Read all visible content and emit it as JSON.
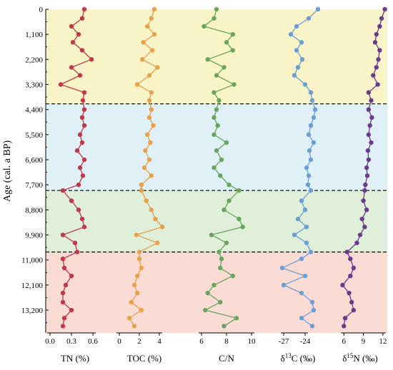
{
  "chart_data": {
    "type": "line",
    "ylabel": "Age (cal. a BP)",
    "y_axis": {
      "ticks": [
        0,
        1100,
        2200,
        3300,
        4400,
        5500,
        6600,
        7700,
        8800,
        9900,
        11000,
        12100,
        13200
      ],
      "tick_labels": [
        "0",
        "1,100",
        "2,200",
        "3,300",
        "4,400",
        "5,500",
        "6,600",
        "7,700",
        "8,800",
        "9,900",
        "11,000",
        "12,100",
        "13,200"
      ],
      "range": [
        0,
        14200
      ],
      "inverted": true
    },
    "zones": [
      {
        "from": 0,
        "to": 4150,
        "color": "#f8f4c7"
      },
      {
        "from": 4150,
        "to": 7950,
        "color": "#dff0f6"
      },
      {
        "from": 7950,
        "to": 10650,
        "color": "#dfefd9"
      },
      {
        "from": 10650,
        "to": 14200,
        "color": "#fadcd4"
      }
    ],
    "boundaries": [
      4150,
      7950,
      10650
    ],
    "ages": [
      0,
      400,
      750,
      1100,
      1450,
      1800,
      2200,
      2550,
      2900,
      3300,
      3650,
      4000,
      4400,
      4750,
      5100,
      5500,
      5850,
      6200,
      6600,
      6950,
      7300,
      7700,
      7950,
      8400,
      8800,
      9200,
      9550,
      9900,
      10250,
      10650,
      10950,
      11350,
      11700,
      12100,
      12450,
      12850,
      13200,
      13550,
      13900
    ],
    "panels": [
      {
        "id": "tn",
        "label": "TN (%)",
        "color": "#c0394b",
        "range": [
          0,
          0.7
        ],
        "ticks": [
          0,
          0.3,
          0.6
        ],
        "tick_labels": [
          "0.0",
          "0.3",
          "0.6"
        ],
        "values": [
          0.48,
          0.45,
          0.3,
          0.4,
          0.32,
          0.45,
          0.58,
          0.3,
          0.42,
          0.15,
          0.48,
          0.46,
          0.48,
          0.45,
          0.48,
          0.42,
          0.45,
          0.38,
          0.48,
          0.42,
          0.46,
          0.4,
          0.18,
          0.3,
          0.4,
          0.45,
          0.48,
          0.18,
          0.35,
          0.38,
          0.18,
          0.2,
          0.3,
          0.22,
          0.18,
          0.18,
          0.3,
          0.2,
          0.18
        ]
      },
      {
        "id": "toc",
        "label": "TOC (%)",
        "color": "#e8a04b",
        "range": [
          0,
          5
        ],
        "ticks": [
          0,
          2,
          4
        ],
        "tick_labels": [
          "0",
          "2",
          "4"
        ],
        "values": [
          3.5,
          3.2,
          2.8,
          3.5,
          2.4,
          3.3,
          2.3,
          3.8,
          3.0,
          1.8,
          3.2,
          3.0,
          3.2,
          3.0,
          3.4,
          2.8,
          3.1,
          2.6,
          3.0,
          2.5,
          3.2,
          2.2,
          2.2,
          2.7,
          3.2,
          3.6,
          4.3,
          1.7,
          3.8,
          2.0,
          2.0,
          2.2,
          1.8,
          1.5,
          1.8,
          1.2,
          2.2,
          1.0,
          1.5
        ]
      },
      {
        "id": "cn",
        "label": "C/N",
        "color": "#6aa55f",
        "range": [
          6,
          10
        ],
        "ticks": [
          6,
          8,
          10
        ],
        "tick_labels": [
          "6",
          "8",
          "10"
        ],
        "values": [
          7.2,
          7.0,
          6.2,
          8.5,
          8.0,
          8.5,
          6.5,
          7.8,
          7.2,
          8.6,
          7.0,
          7.4,
          7.2,
          7.0,
          7.3,
          7.0,
          8.0,
          7.2,
          7.6,
          7.0,
          7.5,
          8.2,
          9.0,
          8.2,
          7.8,
          9.0,
          9.3,
          6.8,
          8.0,
          7.4,
          7.6,
          7.5,
          8.5,
          7.0,
          6.5,
          7.5,
          6.3,
          8.8,
          7.8
        ]
      },
      {
        "id": "d13c",
        "label": "δ13C (‰)",
        "color": "#6b9fd4",
        "range": [
          -28.5,
          -21.5
        ],
        "ticks": [
          -27,
          -24
        ],
        "tick_labels": [
          "-27",
          "-24"
        ],
        "values": [
          -22.2,
          -23.5,
          -25.2,
          -26.0,
          -24.5,
          -25.2,
          -24.4,
          -25.0,
          -25.5,
          -24.0,
          -23.2,
          -23.0,
          -22.6,
          -22.8,
          -23.2,
          -23.5,
          -22.8,
          -23.4,
          -23.2,
          -23.8,
          -23.5,
          -23.6,
          -23.2,
          -24.5,
          -24.0,
          -25.0,
          -23.8,
          -25.5,
          -23.8,
          -23.2,
          -24.5,
          -27.2,
          -24.0,
          -27.0,
          -24.5,
          -23.0,
          -22.8,
          -24.5,
          -23.0
        ]
      },
      {
        "id": "d15n",
        "label": "δ15N (‰)",
        "color": "#6a3b8c",
        "range": [
          4,
          13
        ],
        "ticks": [
          6,
          9,
          12
        ],
        "tick_labels": [
          "6",
          "9",
          "12"
        ],
        "values": [
          12.3,
          11.8,
          11.5,
          11.0,
          10.8,
          11.5,
          11.3,
          11.0,
          10.5,
          11.2,
          9.8,
          10.2,
          9.8,
          10.3,
          10.0,
          9.8,
          10.2,
          9.7,
          9.8,
          9.5,
          9.6,
          9.3,
          9.2,
          9.0,
          9.5,
          8.8,
          9.2,
          8.5,
          8.0,
          6.5,
          7.0,
          7.5,
          7.0,
          5.8,
          6.8,
          7.2,
          7.5,
          6.2,
          6.0
        ]
      }
    ]
  }
}
